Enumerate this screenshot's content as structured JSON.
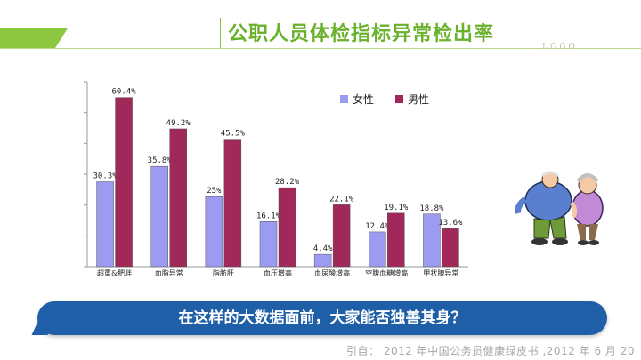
{
  "header": {
    "title": "公职人员体检指标异常检出率",
    "logo": "LOGO"
  },
  "chart_data": {
    "type": "bar",
    "categories": [
      "超重&肥胖",
      "血脂异常",
      "脂肪肝",
      "血压增高",
      "血尿酸增高",
      "空腹血糖增高",
      "甲状腺异常"
    ],
    "series": [
      {
        "name": "女性",
        "values": [
          30.3,
          35.8,
          25,
          16.1,
          4.4,
          12.4,
          18.8
        ],
        "labels": [
          "30.3%",
          "35.8%",
          "25%",
          "16.1%",
          "4.4%",
          "12.4%",
          "18.8%"
        ],
        "color": "#9b9bf2"
      },
      {
        "name": "男性",
        "values": [
          60.4,
          49.2,
          45.5,
          28.2,
          22.1,
          19.1,
          13.6
        ],
        "labels": [
          "60.4%",
          "49.2%",
          "45.5%",
          "28.2%",
          "22.1%",
          "19.1%",
          "13.6%"
        ],
        "color": "#a0295a"
      }
    ],
    "ylim": [
      0,
      66
    ],
    "legend_position": "top-right",
    "grid": false
  },
  "banner": {
    "text": "在这样的大数据面前，大家能否独善其身？"
  },
  "source": {
    "text": "引自： 2012 年中国公务员健康绿皮书 ,2012 年 6 月 20"
  },
  "colors": {
    "accent_green": "#8dc63f",
    "banner_blue": "#1f5fa8"
  },
  "illustration": {
    "icon": "elderly-couple-illustration"
  }
}
